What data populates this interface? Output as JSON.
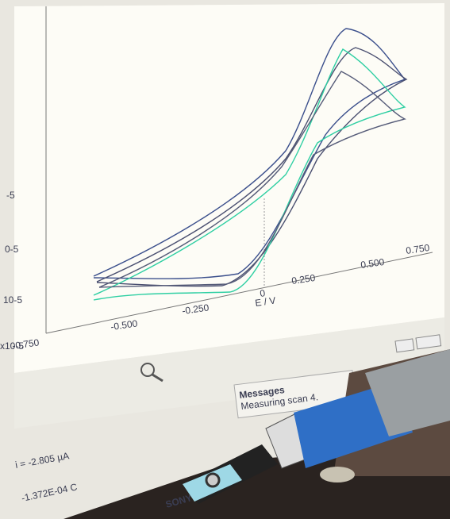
{
  "plot": {
    "x_axis_label": "E / V",
    "x_tick_labels": [
      "-0.750",
      "-0.500",
      "-0.250",
      "0",
      "0.250",
      "0.500",
      "0.750"
    ],
    "y_tick_labels": [
      "-5",
      "0-5",
      "10-5",
      "x10-5"
    ]
  },
  "messages": {
    "title": "Messages",
    "text": "Measuring scan 4."
  },
  "status": {
    "current": "i = -2.805 µA",
    "charge": "-1.372E-04 C"
  },
  "brand": "SONY"
}
